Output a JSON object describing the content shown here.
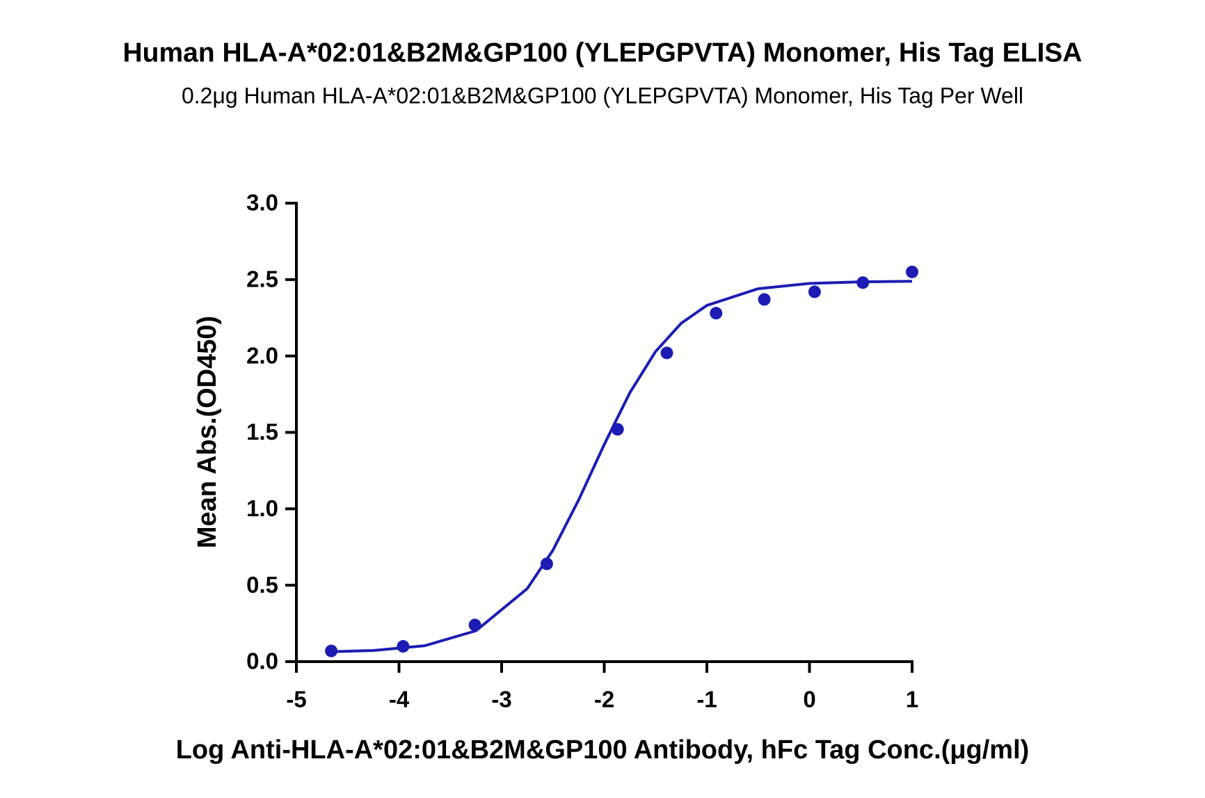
{
  "chart_data": {
    "type": "scatter",
    "title": "Human HLA-A*02:01&B2M&GP100 (YLEPGPVTA) Monomer, His Tag ELISA",
    "subtitle": "0.2μg Human HLA-A*02:01&B2M&GP100 (YLEPGPVTA) Monomer, His Tag Per Well",
    "x_label": "Log Anti-HLA-A*02:01&B2M&GP100 Antibody, hFc Tag Conc.(μg/ml)",
    "y_label": "Mean Abs.(OD450)",
    "color": "#1c1cb4",
    "x": [
      -4.66,
      -3.96,
      -3.26,
      -2.56,
      -1.87,
      -1.39,
      -0.91,
      -0.44,
      0.05,
      0.52,
      1.0
    ],
    "values": [
      0.07,
      0.1,
      0.24,
      0.64,
      1.52,
      2.02,
      2.28,
      2.37,
      2.42,
      2.48,
      2.55
    ],
    "fit": {
      "x": [
        -4.66,
        -4.25,
        -3.75,
        -3.25,
        -2.75,
        -2.5,
        -2.25,
        -2.0,
        -1.75,
        -1.5,
        -1.25,
        -1.0,
        -0.5,
        0,
        0.5,
        1.0
      ],
      "values": [
        0.065,
        0.073,
        0.104,
        0.202,
        0.478,
        0.729,
        1.057,
        1.421,
        1.76,
        2.029,
        2.214,
        2.331,
        2.44,
        2.475,
        2.485,
        2.489
      ]
    },
    "xlim": [
      -5,
      1
    ],
    "xticks": [
      -5,
      -4,
      -3,
      -2,
      -1,
      0,
      1
    ],
    "ylim": [
      0,
      3
    ],
    "yticks": [
      {
        "value": 0,
        "label": "0.0"
      },
      {
        "value": 0.5,
        "label": "0.5"
      },
      {
        "value": 1,
        "label": "1.0"
      },
      1.5,
      {
        "value": 2,
        "label": "2.0"
      },
      2.5,
      {
        "value": 3,
        "label": "3.0"
      }
    ]
  }
}
